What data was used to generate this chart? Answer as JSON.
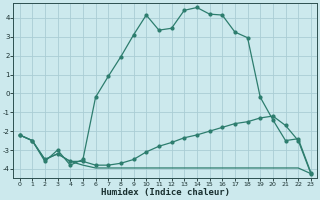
{
  "title": "",
  "xlabel": "Humidex (Indice chaleur)",
  "ylabel": "",
  "background_color": "#cce9ed",
  "grid_color": "#aacdd4",
  "line_color": "#2d7d6e",
  "xlim": [
    -0.5,
    23.5
  ],
  "ylim": [
    -4.5,
    4.8
  ],
  "xticks": [
    0,
    1,
    2,
    3,
    4,
    5,
    6,
    7,
    8,
    9,
    10,
    11,
    12,
    13,
    14,
    15,
    16,
    17,
    18,
    19,
    20,
    21,
    22,
    23
  ],
  "yticks": [
    -4,
    -3,
    -2,
    -1,
    0,
    1,
    2,
    3,
    4
  ],
  "line1_x": [
    0,
    1,
    2,
    3,
    4,
    5,
    6,
    7,
    8,
    9,
    10,
    11,
    12,
    13,
    14,
    15,
    16,
    17,
    18,
    19,
    20,
    21,
    22,
    23
  ],
  "line1_y": [
    -2.2,
    -2.5,
    -3.6,
    -3.0,
    -3.8,
    -3.5,
    -0.2,
    0.9,
    1.95,
    3.1,
    4.15,
    3.35,
    3.45,
    4.4,
    4.55,
    4.2,
    4.15,
    3.25,
    2.95,
    -0.2,
    -1.4,
    -2.5,
    -2.4,
    -4.2
  ],
  "line2_x": [
    0,
    1,
    2,
    3,
    4,
    5,
    6,
    7,
    8,
    9,
    10,
    11,
    12,
    13,
    14,
    15,
    16,
    17,
    18,
    19,
    20,
    21,
    22,
    23
  ],
  "line2_y": [
    -2.2,
    -2.5,
    -3.5,
    -3.2,
    -3.6,
    -3.6,
    -3.8,
    -3.8,
    -3.7,
    -3.5,
    -3.1,
    -2.8,
    -2.6,
    -2.35,
    -2.2,
    -2.0,
    -1.8,
    -1.6,
    -1.5,
    -1.3,
    -1.2,
    -1.7,
    -2.5,
    -4.25
  ],
  "line3_x": [
    0,
    1,
    2,
    3,
    4,
    5,
    6,
    7,
    8,
    9,
    10,
    11,
    12,
    13,
    14,
    15,
    16,
    17,
    18,
    19,
    20,
    21,
    22,
    23
  ],
  "line3_y": [
    -2.2,
    -2.5,
    -3.5,
    -3.2,
    -3.6,
    -3.8,
    -3.95,
    -3.95,
    -3.95,
    -3.95,
    -3.95,
    -3.95,
    -3.95,
    -3.95,
    -3.95,
    -3.95,
    -3.95,
    -3.95,
    -3.95,
    -3.95,
    -3.95,
    -3.95,
    -3.95,
    -4.25
  ]
}
